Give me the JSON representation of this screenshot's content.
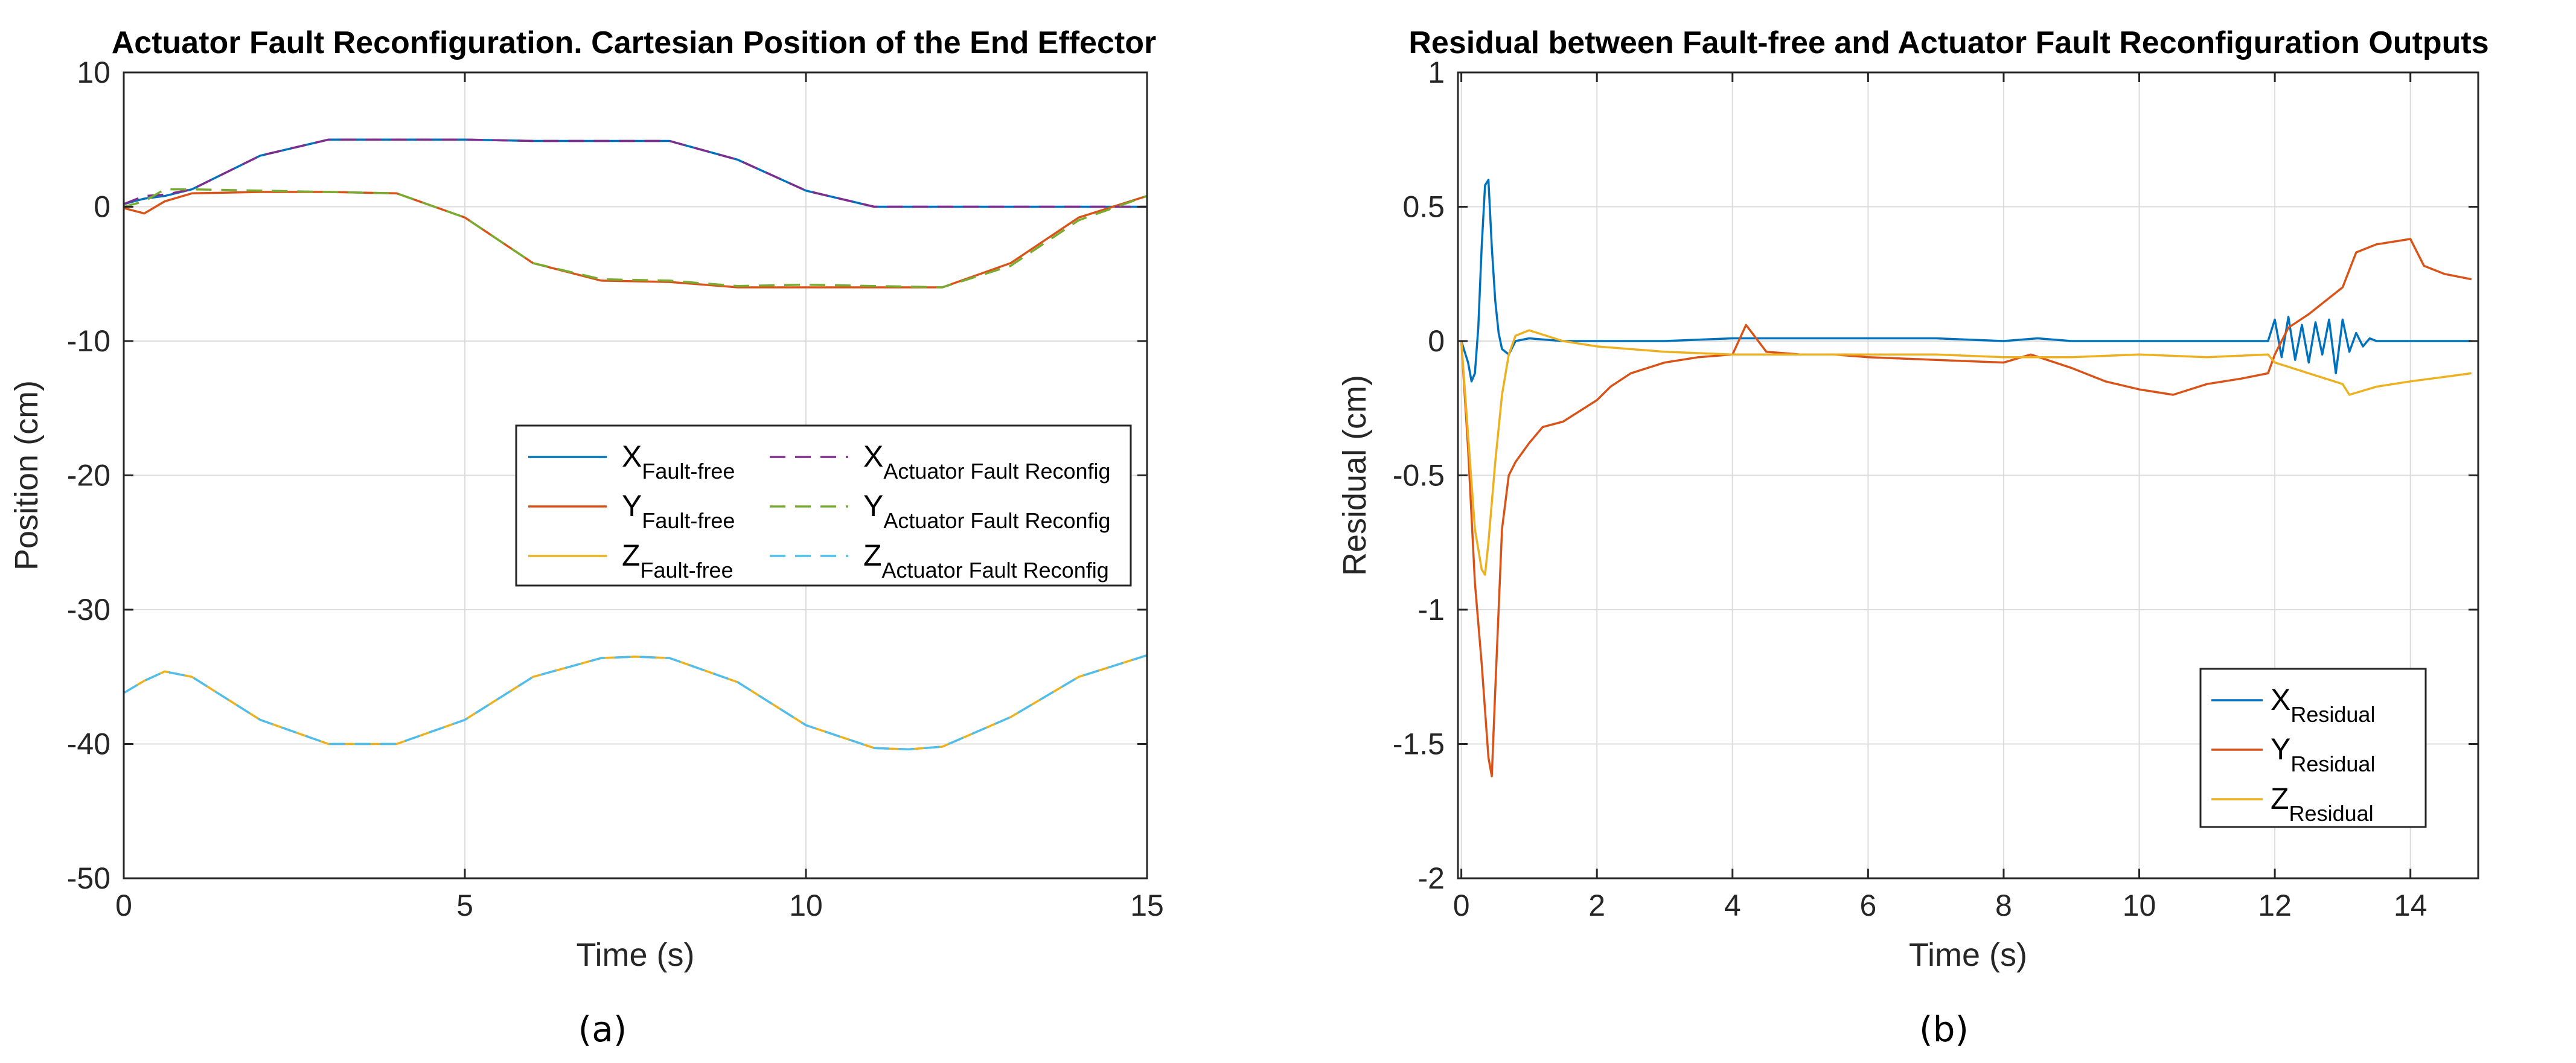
{
  "colors": {
    "blue": "#0072BD",
    "orange": "#D95319",
    "yellow": "#EDB120",
    "purple": "#7E2F8E",
    "green": "#77AC30",
    "cyan": "#4DBEEE",
    "grid": "#dcdcdc",
    "axis": "#262626"
  },
  "chart_data": [
    {
      "type": "line",
      "panel_label": "(a)",
      "title": "Actuator Fault Reconfiguration. Cartesian Position of the End Effector",
      "xlabel": "Time (s)",
      "ylabel": "Position (cm)",
      "xlim": [
        0,
        15
      ],
      "ylim": [
        -50,
        10
      ],
      "xticks": [
        0,
        5,
        10,
        15
      ],
      "yticks": [
        -50,
        -40,
        -30,
        -20,
        -10,
        0,
        10
      ],
      "grid": true,
      "legend": {
        "placement": "center-right",
        "columns": 2,
        "entries": [
          {
            "base": "X",
            "sub": "Fault-free",
            "series": "X Fault-free"
          },
          {
            "base": "X",
            "sub": "Actuator Fault Reconfig",
            "series": "X Actuator Fault Reconfig"
          },
          {
            "base": "Y",
            "sub": "Fault-free",
            "series": "Y Fault-free"
          },
          {
            "base": "Y",
            "sub": "Actuator Fault Reconfig",
            "series": "Y Actuator Fault Reconfig"
          },
          {
            "base": "Z",
            "sub": "Fault-free",
            "series": "Z Fault-free"
          },
          {
            "base": "Z",
            "sub": "Actuator Fault Reconfig",
            "series": "Z Actuator Fault Reconfig"
          }
        ]
      },
      "series": [
        {
          "name": "X Fault-free",
          "color": "blue",
          "dash": "solid",
          "x": [
            0,
            0.3,
            0.6,
            1,
            2,
            3,
            4,
            5,
            6,
            7,
            8,
            9,
            10,
            11,
            12,
            13,
            14,
            15
          ],
          "y": [
            0.2,
            0.6,
            0.8,
            1.3,
            3.8,
            5,
            5,
            5,
            4.9,
            4.9,
            4.9,
            3.5,
            1.2,
            0,
            0,
            0,
            0,
            0
          ]
        },
        {
          "name": "Y Fault-free",
          "color": "orange",
          "dash": "solid",
          "x": [
            0,
            0.3,
            0.6,
            1,
            2,
            3,
            4,
            5,
            6,
            7,
            8,
            9,
            10,
            11,
            12,
            13,
            14,
            15
          ],
          "y": [
            -0.1,
            -0.5,
            0.4,
            1.0,
            1.1,
            1.1,
            1.0,
            -0.8,
            -4.2,
            -5.5,
            -5.6,
            -6.0,
            -6.0,
            -6.0,
            -6.0,
            -4.2,
            -0.8,
            0.8
          ]
        },
        {
          "name": "Z Fault-free",
          "color": "yellow",
          "dash": "solid",
          "x": [
            0,
            0.3,
            0.6,
            1,
            2,
            3,
            4,
            5,
            6,
            7,
            7.5,
            8,
            9,
            10,
            11,
            11.5,
            12,
            13,
            14,
            15
          ],
          "y": [
            -36.2,
            -35.3,
            -34.6,
            -35.0,
            -38.2,
            -40.0,
            -40.0,
            -38.2,
            -35.0,
            -33.6,
            -33.5,
            -33.6,
            -35.4,
            -38.6,
            -40.3,
            -40.4,
            -40.2,
            -38.0,
            -35.0,
            -33.4
          ]
        },
        {
          "name": "X Actuator Fault Reconfig",
          "color": "purple",
          "dash": "dashed",
          "x": [
            0,
            0.3,
            0.6,
            1,
            2,
            3,
            4,
            5,
            6,
            7,
            8,
            9,
            10,
            11,
            12,
            13,
            14,
            15
          ],
          "y": [
            0.2,
            0.8,
            0.9,
            1.3,
            3.8,
            5,
            5,
            5,
            4.9,
            4.9,
            4.9,
            3.5,
            1.2,
            0,
            0,
            0,
            0,
            0
          ]
        },
        {
          "name": "Y Actuator Fault Reconfig",
          "color": "green",
          "dash": "dashed",
          "x": [
            0,
            0.3,
            0.6,
            1,
            2,
            3,
            4,
            5,
            6,
            7,
            8,
            9,
            10,
            11,
            12,
            13,
            14,
            15
          ],
          "y": [
            0.0,
            0.4,
            1.3,
            1.3,
            1.2,
            1.1,
            1.0,
            -0.8,
            -4.2,
            -5.4,
            -5.5,
            -5.9,
            -5.8,
            -5.9,
            -6.0,
            -4.4,
            -1.0,
            0.8
          ]
        },
        {
          "name": "Z Actuator Fault Reconfig",
          "color": "cyan",
          "dash": "dashed",
          "x": [
            0,
            0.3,
            0.6,
            1,
            2,
            3,
            4,
            5,
            6,
            7,
            7.5,
            8,
            9,
            10,
            11,
            11.5,
            12,
            13,
            14,
            15
          ],
          "y": [
            -36.2,
            -35.3,
            -34.6,
            -35.0,
            -38.2,
            -40.0,
            -40.0,
            -38.2,
            -35.0,
            -33.6,
            -33.5,
            -33.6,
            -35.4,
            -38.6,
            -40.3,
            -40.4,
            -40.2,
            -38.0,
            -35.0,
            -33.4
          ]
        }
      ]
    },
    {
      "type": "line",
      "panel_label": "(b)",
      "title": "Residual between Fault-free and Actuator Fault Reconfiguration Outputs",
      "xlabel": "Time (s)",
      "ylabel": "Residual (cm)",
      "xlim": [
        -0.05,
        15
      ],
      "ylim": [
        -2,
        1
      ],
      "xticks": [
        0,
        2,
        4,
        6,
        8,
        10,
        12,
        14
      ],
      "yticks": [
        -2,
        -1.5,
        -1,
        -0.5,
        0,
        0.5,
        1
      ],
      "grid": true,
      "legend": {
        "placement": "bottom-right",
        "columns": 1,
        "entries": [
          {
            "base": "X",
            "sub": "Residual",
            "series": "X Residual"
          },
          {
            "base": "Y",
            "sub": "Residual",
            "series": "Y Residual"
          },
          {
            "base": "Z",
            "sub": "Residual",
            "series": "Z Residual"
          }
        ]
      },
      "series": [
        {
          "name": "X Residual",
          "color": "blue",
          "dash": "solid",
          "x": [
            0,
            0.1,
            0.15,
            0.2,
            0.25,
            0.3,
            0.35,
            0.4,
            0.45,
            0.5,
            0.55,
            0.6,
            0.7,
            0.8,
            1.0,
            1.5,
            2,
            3,
            4,
            5,
            6,
            7,
            8,
            8.5,
            9,
            10,
            11,
            11.9,
            12.0,
            12.1,
            12.2,
            12.3,
            12.4,
            12.5,
            12.6,
            12.7,
            12.8,
            12.9,
            13.0,
            13.1,
            13.2,
            13.3,
            13.4,
            13.5,
            14,
            14.9
          ],
          "y": [
            0,
            -0.08,
            -0.15,
            -0.12,
            0.05,
            0.35,
            0.58,
            0.6,
            0.35,
            0.15,
            0.03,
            -0.03,
            -0.05,
            0.0,
            0.01,
            0.0,
            0.0,
            0.0,
            0.01,
            0.01,
            0.01,
            0.01,
            0.0,
            0.01,
            0.0,
            0.0,
            0.0,
            0.0,
            0.08,
            -0.06,
            0.09,
            -0.07,
            0.06,
            -0.08,
            0.07,
            -0.05,
            0.08,
            -0.12,
            0.08,
            -0.04,
            0.03,
            -0.02,
            0.01,
            0.0,
            0.0,
            0.0
          ]
        },
        {
          "name": "Y Residual",
          "color": "orange",
          "dash": "solid",
          "x": [
            0,
            0.1,
            0.2,
            0.3,
            0.4,
            0.45,
            0.5,
            0.6,
            0.7,
            0.8,
            1.0,
            1.2,
            1.5,
            2.0,
            2.2,
            2.5,
            3.0,
            3.5,
            4.0,
            4.2,
            4.5,
            5.0,
            5.5,
            6.0,
            7.0,
            8.0,
            8.4,
            9.0,
            9.5,
            10.0,
            10.5,
            11.0,
            11.5,
            11.9,
            12.0,
            12.2,
            12.5,
            13.0,
            13.2,
            13.5,
            14.0,
            14.2,
            14.5,
            14.9
          ],
          "y": [
            0,
            -0.4,
            -0.9,
            -1.2,
            -1.55,
            -1.62,
            -1.3,
            -0.7,
            -0.5,
            -0.45,
            -0.38,
            -0.32,
            -0.3,
            -0.22,
            -0.17,
            -0.12,
            -0.08,
            -0.06,
            -0.05,
            0.06,
            -0.04,
            -0.05,
            -0.05,
            -0.06,
            -0.07,
            -0.08,
            -0.05,
            -0.1,
            -0.15,
            -0.18,
            -0.2,
            -0.16,
            -0.14,
            -0.12,
            -0.05,
            0.05,
            0.1,
            0.2,
            0.33,
            0.36,
            0.38,
            0.28,
            0.25,
            0.23
          ]
        },
        {
          "name": "Z Residual",
          "color": "yellow",
          "dash": "solid",
          "x": [
            0,
            0.1,
            0.2,
            0.3,
            0.35,
            0.4,
            0.5,
            0.6,
            0.7,
            0.8,
            1.0,
            1.5,
            2.0,
            3.0,
            4.0,
            5.0,
            6.0,
            7.0,
            8.0,
            9.0,
            10.0,
            11.0,
            11.9,
            12.0,
            12.5,
            13.0,
            13.1,
            13.5,
            14.0,
            14.9
          ],
          "y": [
            0,
            -0.35,
            -0.7,
            -0.85,
            -0.87,
            -0.75,
            -0.45,
            -0.2,
            -0.05,
            0.02,
            0.04,
            0.0,
            -0.02,
            -0.04,
            -0.05,
            -0.05,
            -0.05,
            -0.05,
            -0.06,
            -0.06,
            -0.05,
            -0.06,
            -0.05,
            -0.08,
            -0.12,
            -0.16,
            -0.2,
            -0.17,
            -0.15,
            -0.12
          ]
        }
      ]
    }
  ]
}
